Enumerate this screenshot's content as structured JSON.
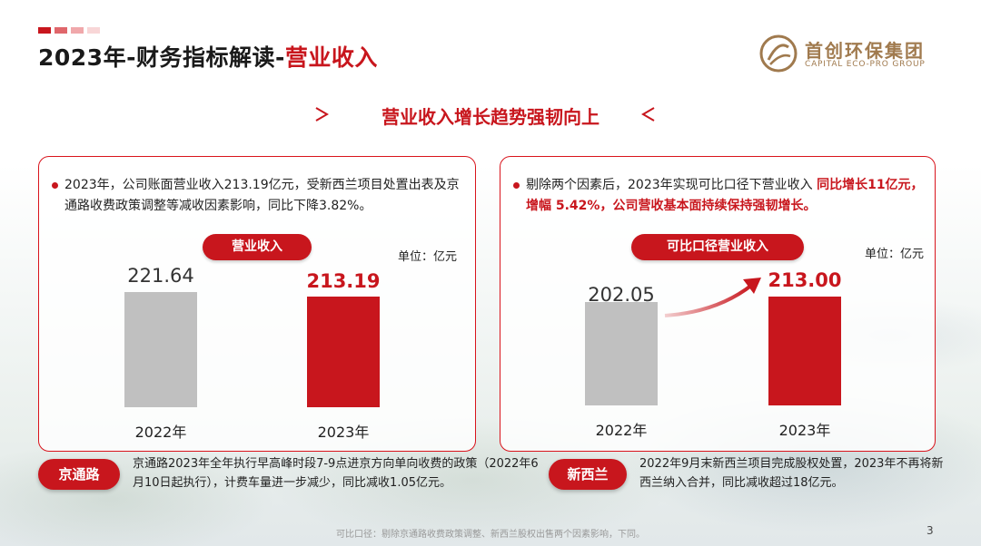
{
  "page": {
    "title_black": "2023年-财务指标解读-",
    "title_red": "营业收入",
    "subtitle": "营业收入增长趋势强韧向上",
    "logo_cn": "首创环保集团",
    "logo_en": "CAPITAL ECO-PRO GROUP",
    "footnote": "可比口径：剔除京通路收费政策调整、新西兰股权出售两个因素影响，下同。",
    "page_number": "3"
  },
  "colors": {
    "accent": "#c8161d",
    "gray_bar": "#c0c0c0",
    "logo_gold": "#a07a4e"
  },
  "left_card": {
    "text": "2023年，公司账面营业收入213.19亿元，受新西兰项目处置出表及京通路收费政策调整等减收因素影响，同比下降3.82%。",
    "pill_label": "营业收入",
    "unit": "单位：亿元"
  },
  "right_card": {
    "text_normal": "剔除两个因素后，2023年实现可比口径下营业收入 ",
    "text_red": "同比增长11亿元，增幅 5.42%，公司营收基本面持续保持强韧增长。",
    "pill_label": "可比口径营业收入",
    "unit": "单位：亿元"
  },
  "chart_data": [
    {
      "type": "bar",
      "title": "营业收入",
      "unit": "亿元",
      "categories": [
        "2022年",
        "2023年"
      ],
      "values": [
        221.64,
        213.19
      ],
      "value_labels": [
        "221.64",
        "213.19"
      ],
      "colors": [
        "#c0c0c0",
        "#c8161d"
      ]
    },
    {
      "type": "bar",
      "title": "可比口径营业收入",
      "unit": "亿元",
      "categories": [
        "2022年",
        "2023年"
      ],
      "values": [
        202.05,
        213.0
      ],
      "value_labels": [
        "202.05",
        "213.00"
      ],
      "colors": [
        "#c0c0c0",
        "#c8161d"
      ]
    }
  ],
  "notes": [
    {
      "tag": "京通路",
      "text": "京通路2023年全年执行早高峰时段7-9点进京方向单向收费的政策（2022年6月10日起执行），计费车量进一步减少，同比减收1.05亿元。"
    },
    {
      "tag": "新西兰",
      "text": "2022年9月末新西兰项目完成股权处置，2023年不再将新西兰纳入合并，同比减收超过18亿元。"
    }
  ]
}
